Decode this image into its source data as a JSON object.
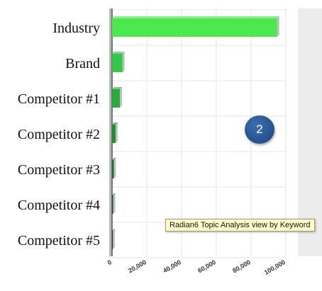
{
  "chart_data": {
    "type": "bar",
    "orientation": "horizontal",
    "categories": [
      "Industry",
      "Brand",
      "Competitor #1",
      "Competitor #2",
      "Competitor #3",
      "Competitor #4",
      "Competitor #5"
    ],
    "values": [
      95000,
      6000,
      4500,
      2000,
      1000,
      600,
      400
    ],
    "xlim": [
      0,
      100000
    ],
    "xticks": [
      "0",
      "20,000",
      "40,000",
      "60,000",
      "80,000",
      "100,000"
    ],
    "xtick_values": [
      0,
      20000,
      40000,
      60000,
      80000,
      100000
    ],
    "title": "",
    "xlabel": "",
    "ylabel": "",
    "grid": true,
    "bar_colors": [
      "#4de84d",
      "#33c84a",
      "#26ad3c",
      "#1c8f30",
      "#157526",
      "#0f5d1d",
      "#0a4515"
    ]
  },
  "marker": {
    "label": "2",
    "color": "#2c5a99"
  },
  "tooltip": {
    "text": "Radian6 Topic Analysis view by Keyword"
  },
  "colors": {
    "plot_background_right": "#ececec",
    "grid": "#e6e6e6",
    "axis": "#555555"
  }
}
